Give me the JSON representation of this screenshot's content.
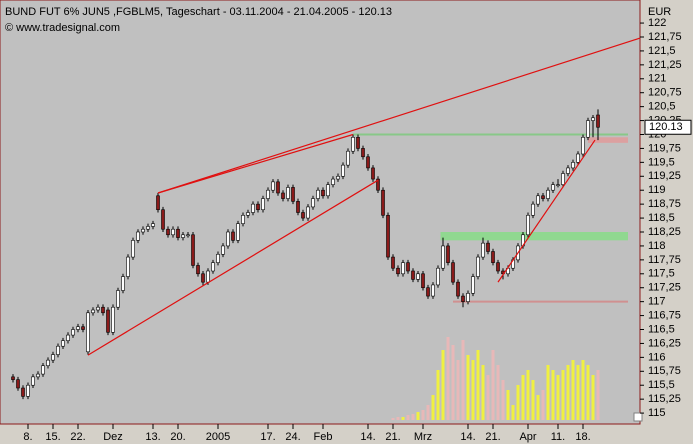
{
  "chart_data": {
    "type": "candlestick",
    "title": "BUND FUT 6% JUN5 ,FGBLM5, Tageschart - 03.11.2004 - 21.04.2005 - 120.13",
    "subtitle": "© www.tradesignal.com",
    "y_label": "EUR",
    "categories": [
      null,
      null,
      null,
      "8.",
      null,
      null,
      null,
      null,
      "15.",
      null,
      null,
      null,
      null,
      "22.",
      null,
      null,
      null,
      null,
      null,
      null,
      "Dez",
      null,
      null,
      null,
      null,
      null,
      null,
      null,
      "13.",
      null,
      null,
      null,
      null,
      "20.",
      null,
      null,
      null,
      null,
      null,
      null,
      null,
      "2005",
      null,
      null,
      null,
      null,
      null,
      null,
      null,
      null,
      null,
      "17.",
      null,
      null,
      null,
      null,
      "24.",
      null,
      null,
      null,
      null,
      null,
      "Feb",
      null,
      null,
      null,
      null,
      null,
      null,
      null,
      null,
      "14.",
      null,
      null,
      null,
      null,
      "21.",
      null,
      null,
      null,
      null,
      null,
      "Mrz",
      null,
      null,
      null,
      null,
      null,
      null,
      null,
      null,
      "14.",
      null,
      null,
      null,
      null,
      "21.",
      null,
      null,
      null,
      null,
      null,
      null,
      "Apr",
      null,
      null,
      null,
      null,
      null,
      "11.",
      null,
      null,
      null,
      null,
      "18.",
      null,
      null,
      null
    ],
    "ohlc": [
      [
        115.65,
        115.7,
        115.55,
        115.6
      ],
      [
        115.6,
        115.65,
        115.4,
        115.45
      ],
      [
        115.45,
        115.5,
        115.25,
        115.3
      ],
      [
        115.3,
        115.55,
        115.25,
        115.5
      ],
      [
        115.5,
        115.7,
        115.45,
        115.65
      ],
      [
        115.65,
        115.75,
        115.6,
        115.7
      ],
      [
        115.7,
        115.9,
        115.65,
        115.85
      ],
      [
        115.85,
        116.0,
        115.8,
        115.95
      ],
      [
        115.95,
        116.1,
        115.9,
        116.05
      ],
      [
        116.05,
        116.25,
        116.0,
        116.2
      ],
      [
        116.2,
        116.35,
        116.15,
        116.3
      ],
      [
        116.3,
        116.45,
        116.25,
        116.4
      ],
      [
        116.4,
        116.55,
        116.35,
        116.5
      ],
      [
        116.5,
        116.6,
        116.45,
        116.55
      ],
      [
        116.55,
        116.6,
        116.45,
        116.5
      ],
      [
        116.1,
        116.85,
        116.05,
        116.8
      ],
      [
        116.8,
        116.9,
        116.75,
        116.85
      ],
      [
        116.85,
        116.95,
        116.8,
        116.9
      ],
      [
        116.9,
        116.95,
        116.75,
        116.8
      ],
      [
        116.85,
        116.9,
        116.4,
        116.45
      ],
      [
        116.45,
        116.95,
        116.4,
        116.9
      ],
      [
        116.9,
        117.25,
        116.85,
        117.2
      ],
      [
        117.2,
        117.5,
        117.15,
        117.45
      ],
      [
        117.45,
        117.85,
        117.4,
        117.8
      ],
      [
        117.8,
        118.15,
        117.75,
        118.1
      ],
      [
        118.1,
        118.3,
        118.05,
        118.25
      ],
      [
        118.25,
        118.35,
        118.2,
        118.3
      ],
      [
        118.3,
        118.4,
        118.25,
        118.35
      ],
      [
        118.35,
        118.45,
        118.3,
        118.4
      ],
      [
        118.9,
        118.95,
        118.6,
        118.65
      ],
      [
        118.65,
        118.7,
        118.25,
        118.3
      ],
      [
        118.3,
        118.35,
        118.15,
        118.2
      ],
      [
        118.2,
        118.35,
        118.15,
        118.3
      ],
      [
        118.3,
        118.35,
        118.1,
        118.15
      ],
      [
        118.15,
        118.25,
        118.1,
        118.2
      ],
      [
        118.2,
        118.25,
        118.15,
        118.2
      ],
      [
        118.2,
        118.25,
        117.6,
        117.65
      ],
      [
        117.65,
        117.7,
        117.45,
        117.5
      ],
      [
        117.5,
        117.55,
        117.28,
        117.35
      ],
      [
        117.35,
        117.6,
        117.3,
        117.55
      ],
      [
        117.55,
        117.75,
        117.5,
        117.7
      ],
      [
        117.7,
        117.9,
        117.65,
        117.85
      ],
      [
        117.85,
        118.05,
        117.8,
        118.0
      ],
      [
        118.0,
        118.3,
        117.95,
        118.25
      ],
      [
        118.25,
        118.3,
        118.05,
        118.1
      ],
      [
        118.1,
        118.45,
        118.05,
        118.4
      ],
      [
        118.4,
        118.6,
        118.35,
        118.55
      ],
      [
        118.55,
        118.65,
        118.5,
        118.6
      ],
      [
        118.6,
        118.8,
        118.55,
        118.75
      ],
      [
        118.75,
        118.8,
        118.6,
        118.65
      ],
      [
        118.65,
        118.9,
        118.6,
        118.85
      ],
      [
        118.85,
        119.05,
        118.8,
        119.0
      ],
      [
        119.0,
        119.2,
        118.95,
        119.15
      ],
      [
        119.15,
        119.2,
        118.9,
        118.95
      ],
      [
        118.95,
        119.0,
        118.8,
        118.85
      ],
      [
        118.85,
        119.1,
        118.8,
        119.05
      ],
      [
        119.05,
        119.1,
        118.75,
        118.8
      ],
      [
        118.8,
        118.85,
        118.55,
        118.6
      ],
      [
        118.6,
        118.65,
        118.45,
        118.5
      ],
      [
        118.5,
        118.75,
        118.45,
        118.7
      ],
      [
        118.7,
        118.9,
        118.65,
        118.85
      ],
      [
        118.85,
        119.05,
        118.8,
        119.0
      ],
      [
        119.0,
        119.05,
        118.85,
        118.9
      ],
      [
        118.9,
        119.15,
        118.85,
        119.1
      ],
      [
        119.1,
        119.25,
        119.05,
        119.2
      ],
      [
        119.2,
        119.3,
        119.15,
        119.25
      ],
      [
        119.25,
        119.5,
        119.2,
        119.45
      ],
      [
        119.45,
        119.75,
        119.4,
        119.7
      ],
      [
        119.7,
        120.0,
        119.65,
        119.95
      ],
      [
        119.95,
        120.0,
        119.7,
        119.75
      ],
      [
        119.75,
        119.8,
        119.55,
        119.6
      ],
      [
        119.6,
        119.65,
        119.35,
        119.4
      ],
      [
        119.4,
        119.45,
        119.15,
        119.2
      ],
      [
        119.2,
        119.25,
        118.95,
        119.0
      ],
      [
        119.0,
        119.05,
        118.5,
        118.55
      ],
      [
        118.55,
        118.6,
        117.75,
        117.8
      ],
      [
        117.8,
        117.85,
        117.55,
        117.6
      ],
      [
        117.6,
        117.65,
        117.45,
        117.5
      ],
      [
        117.5,
        117.75,
        117.45,
        117.7
      ],
      [
        117.7,
        117.75,
        117.5,
        117.55
      ],
      [
        117.55,
        117.6,
        117.35,
        117.4
      ],
      [
        117.4,
        117.55,
        117.35,
        117.5
      ],
      [
        117.5,
        117.55,
        117.2,
        117.25
      ],
      [
        117.25,
        117.3,
        117.05,
        117.1
      ],
      [
        117.1,
        117.35,
        117.05,
        117.3
      ],
      [
        117.3,
        117.65,
        117.25,
        117.6
      ],
      [
        117.6,
        118.15,
        117.55,
        118.0
      ],
      [
        118.0,
        118.05,
        117.65,
        117.7
      ],
      [
        117.7,
        117.75,
        117.3,
        117.35
      ],
      [
        117.35,
        117.4,
        117.05,
        117.1
      ],
      [
        117.1,
        117.15,
        116.9,
        117.0
      ],
      [
        117.0,
        117.2,
        116.95,
        117.15
      ],
      [
        117.15,
        117.5,
        117.1,
        117.45
      ],
      [
        117.45,
        117.85,
        117.4,
        117.8
      ],
      [
        117.8,
        118.15,
        117.75,
        118.05
      ],
      [
        118.05,
        118.1,
        117.85,
        117.9
      ],
      [
        117.9,
        117.95,
        117.65,
        117.7
      ],
      [
        117.7,
        117.75,
        117.5,
        117.55
      ],
      [
        117.55,
        117.6,
        117.4,
        117.5
      ],
      [
        117.5,
        117.65,
        117.45,
        117.6
      ],
      [
        117.6,
        117.8,
        117.55,
        117.75
      ],
      [
        117.75,
        118.05,
        117.7,
        118.0
      ],
      [
        118.0,
        118.25,
        117.95,
        118.2
      ],
      [
        118.2,
        118.6,
        118.15,
        118.55
      ],
      [
        118.55,
        118.8,
        118.5,
        118.75
      ],
      [
        118.75,
        118.95,
        118.7,
        118.9
      ],
      [
        118.9,
        118.95,
        118.8,
        118.85
      ],
      [
        118.85,
        119.05,
        118.8,
        119.0
      ],
      [
        119.0,
        119.15,
        118.95,
        119.1
      ],
      [
        119.1,
        119.2,
        119.05,
        119.1
      ],
      [
        119.1,
        119.35,
        119.05,
        119.3
      ],
      [
        119.3,
        119.45,
        119.25,
        119.4
      ],
      [
        119.4,
        119.55,
        119.35,
        119.5
      ],
      [
        119.5,
        119.7,
        119.45,
        119.65
      ],
      [
        119.65,
        120.0,
        119.6,
        119.95
      ],
      [
        119.95,
        120.3,
        119.9,
        120.25
      ],
      [
        120.25,
        120.35,
        119.95,
        120.3
      ],
      [
        120.35,
        120.45,
        119.9,
        120.13
      ]
    ],
    "up_color": "#ffffff",
    "down_color": "#8b1a1a",
    "volume": [
      null,
      null,
      null,
      null,
      null,
      null,
      null,
      null,
      null,
      null,
      null,
      null,
      null,
      null,
      null,
      null,
      null,
      null,
      null,
      null,
      null,
      null,
      null,
      null,
      null,
      null,
      null,
      null,
      null,
      null,
      null,
      null,
      null,
      null,
      null,
      null,
      null,
      null,
      null,
      null,
      null,
      null,
      null,
      null,
      null,
      null,
      null,
      null,
      null,
      null,
      null,
      null,
      null,
      null,
      null,
      null,
      null,
      null,
      null,
      null,
      null,
      null,
      null,
      null,
      null,
      null,
      null,
      null,
      null,
      null,
      null,
      null,
      null,
      null,
      null,
      null,
      2,
      3,
      3,
      5,
      6,
      8,
      10,
      15,
      25,
      50,
      70,
      83,
      75,
      60,
      80,
      65,
      60,
      70,
      55,
      45,
      70,
      55,
      40,
      30,
      15,
      35,
      45,
      50,
      40,
      25,
      30,
      55,
      50,
      45,
      50,
      55,
      60,
      55,
      60,
      55,
      45,
      50
    ],
    "volume_lim": [
      0,
      100
    ],
    "volume_up_color": "#f0f040",
    "volume_down_color": "#e8b8b8",
    "ylim": [
      114.84,
      122.36
    ],
    "yticks": [
      115,
      {
        "value": 115.25,
        "label": "115,25"
      },
      {
        "value": 115.5,
        "label": "115,5"
      },
      {
        "value": 115.75,
        "label": "115,75"
      },
      116,
      {
        "value": 116.25,
        "label": "116,25"
      },
      {
        "value": 116.5,
        "label": "116,5"
      },
      {
        "value": 116.75,
        "label": "116,75"
      },
      117,
      {
        "value": 117.25,
        "label": "117,25"
      },
      {
        "value": 117.5,
        "label": "117,5"
      },
      {
        "value": 117.75,
        "label": "117,75"
      },
      118,
      {
        "value": 118.25,
        "label": "118,25"
      },
      {
        "value": 118.5,
        "label": "118,5"
      },
      {
        "value": 118.75,
        "label": "118,75"
      },
      119,
      {
        "value": 119.25,
        "label": "119,25"
      },
      {
        "value": 119.5,
        "label": "119,5"
      },
      {
        "value": 119.75,
        "label": "119,75"
      },
      120,
      {
        "value": 120.25,
        "label": "120,25"
      },
      {
        "value": 120.5,
        "label": "120,5"
      },
      {
        "value": 120.75,
        "label": "120,75"
      },
      121,
      {
        "value": 121.25,
        "label": "121,25"
      },
      {
        "value": 121.5,
        "label": "121,5"
      },
      {
        "value": 121.75,
        "label": "121,75"
      },
      122
    ],
    "trendlines": [
      {
        "x": [
          29,
          125.4
        ],
        "y": [
          118.95,
          121.73
        ],
        "color": "#e01010"
      },
      {
        "x": [
          15,
          73
        ],
        "y": [
          116.04,
          119.18
        ],
        "color": "#e01010"
      },
      {
        "x": [
          29,
          68
        ],
        "y": [
          118.95,
          120.0
        ],
        "color": "#e01010"
      },
      {
        "x": [
          97,
          116.4
        ],
        "y": [
          117.35,
          119.9
        ],
        "color": "#e01010"
      }
    ],
    "levels": [
      {
        "x": 68,
        "y": 120.0,
        "color": "#88c888"
      },
      {
        "x": 88,
        "y": 117.0,
        "color": "#d09090"
      }
    ],
    "zones": [
      {
        "x": 85.5,
        "y": [
          118.1,
          118.25
        ],
        "color": "#90d890"
      },
      {
        "x": 115,
        "y": [
          119.85,
          119.95
        ],
        "color": "#dca0a0"
      }
    ]
  }
}
